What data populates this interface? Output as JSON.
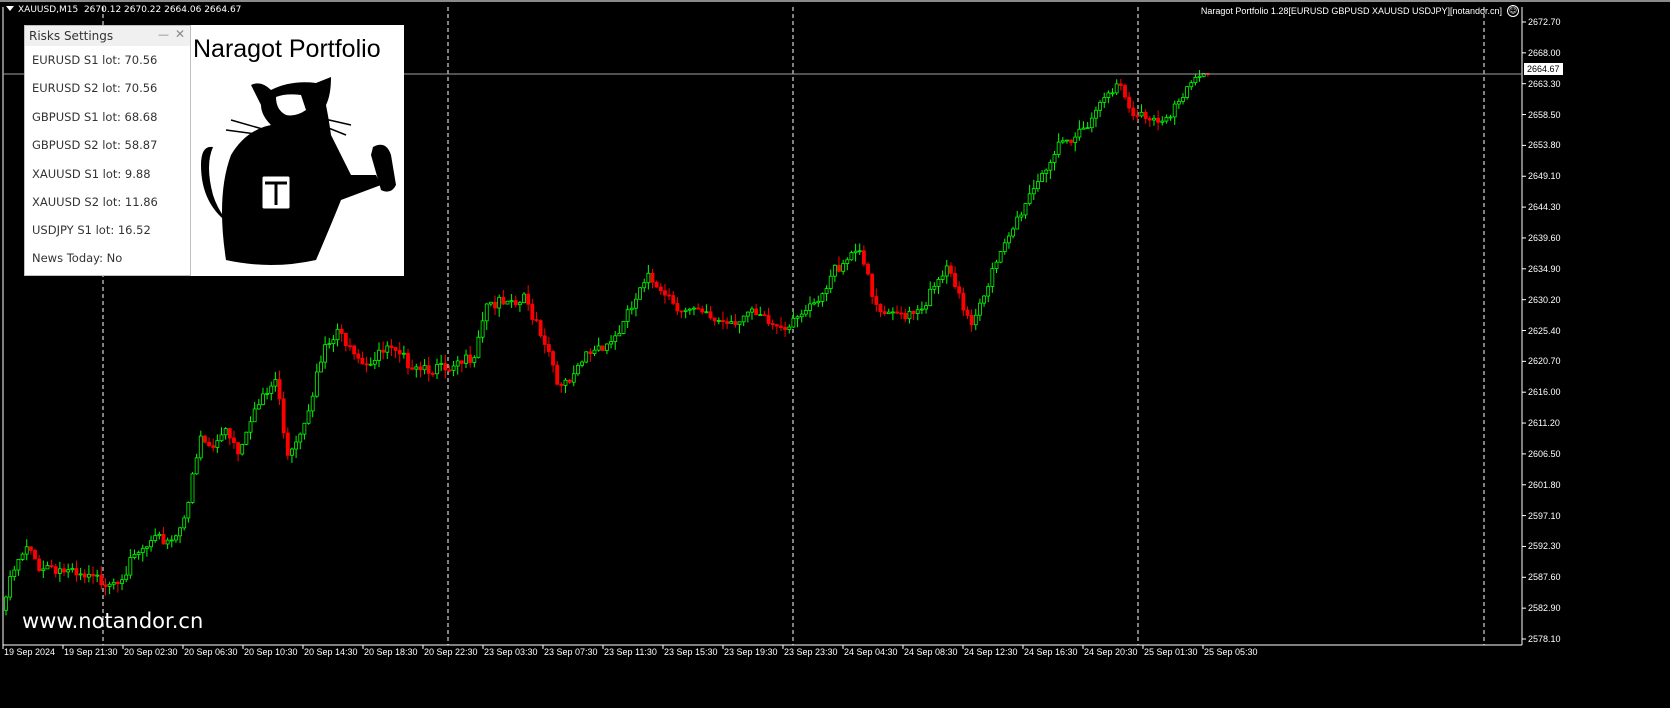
{
  "header": {
    "symbol": "XAUUSD,M15",
    "ohlc": "2670.12 2670.22 2664.06 2664.67"
  },
  "ea_label": "Naragot Portfolio 1.28[EURUSD GBPUSD XAUUSD USDJPY][notandor.cn]",
  "ea_icon": "smiley-icon",
  "panel": {
    "title": "Risks Settings",
    "rows": [
      "EURUSD S1 lot: 70.56",
      "EURUSD S2 lot: 70.56",
      "GBPUSD S1 lot: 68.68",
      "GBPUSD S2 lot: 58.87",
      "XAUUSD S1 lot: 9.88",
      "XAUUSD S2 lot: 11.86",
      "USDJPY S1 lot: 16.52",
      "News Today:  No"
    ]
  },
  "logo": {
    "title": "Naragot Portfolio"
  },
  "watermark": "www.notandor.cn",
  "colors": {
    "bull": "#00ff00",
    "bear": "#ff0000",
    "background": "#000000",
    "grid": "#ffffff"
  },
  "chart_data": {
    "type": "candlestick",
    "symbol": "XAUUSD",
    "timeframe": "M15",
    "current_price": "2664.67",
    "ylim": [
      2578.1,
      2672.7
    ],
    "price_ticks": [
      "2672.70",
      "2668.00",
      "2663.30",
      "2658.50",
      "2653.80",
      "2649.10",
      "2644.30",
      "2639.60",
      "2634.90",
      "2630.20",
      "2625.40",
      "2620.70",
      "2616.00",
      "2611.20",
      "2606.50",
      "2601.80",
      "2597.10",
      "2592.30",
      "2587.60",
      "2582.90",
      "2578.10"
    ],
    "time_ticks": [
      "19 Sep 2024",
      "19 Sep 21:30",
      "20 Sep 02:30",
      "20 Sep 06:30",
      "20 Sep 10:30",
      "20 Sep 14:30",
      "20 Sep 18:30",
      "20 Sep 22:30",
      "23 Sep 03:30",
      "23 Sep 07:30",
      "23 Sep 11:30",
      "23 Sep 15:30",
      "23 Sep 19:30",
      "23 Sep 23:30",
      "24 Sep 04:30",
      "24 Sep 08:30",
      "24 Sep 12:30",
      "24 Sep 16:30",
      "24 Sep 20:30",
      "25 Sep 01:30",
      "25 Sep 05:30"
    ],
    "closes": [
      2582.5,
      2588.6,
      2591.7,
      2589.4,
      2589.4,
      2588.6,
      2587.4,
      2587.1,
      2587.1,
      2587.4,
      2588.6,
      2591.0,
      2592.5,
      2593.3,
      2594.0,
      2599.4,
      2608.6,
      2607.1,
      2610.9,
      2607.1,
      2612.4,
      2614.7,
      2617.8,
      2607.0,
      2610.1,
      2616.3,
      2622.4,
      2624.7,
      2623.9,
      2620.9,
      2620.9,
      2622.4,
      2620.9,
      2620.6,
      2620.1,
      2619.6,
      2618.6,
      2620.1,
      2622.4,
      2630.1,
      2629.3,
      2628.8,
      2630.1,
      2627.0,
      2622.4,
      2616.3,
      2617.8,
      2621.6,
      2623.2,
      2623.9,
      2626.2,
      2630.1,
      2633.1,
      2632.4,
      2630.1,
      2628.3,
      2627.8,
      2627.3,
      2627.0,
      2627.3,
      2627.8,
      2627.0,
      2626.2,
      2626.2,
      2628.5,
      2628.3,
      2630.1,
      2634.7,
      2637.0,
      2638.5,
      2630.1,
      2627.0,
      2627.8,
      2628.5,
      2629.3,
      2631.6,
      2634.7,
      2630.1,
      2627.0,
      2631.6,
      2635.4,
      2639.3,
      2643.9,
      2647.7,
      2650.8,
      2653.1,
      2653.8,
      2656.9,
      2659.2,
      2663.0,
      2662.2,
      2657.7,
      2658.5,
      2658.0,
      2659.2,
      2660.7,
      2663.8,
      2664.67
    ]
  }
}
